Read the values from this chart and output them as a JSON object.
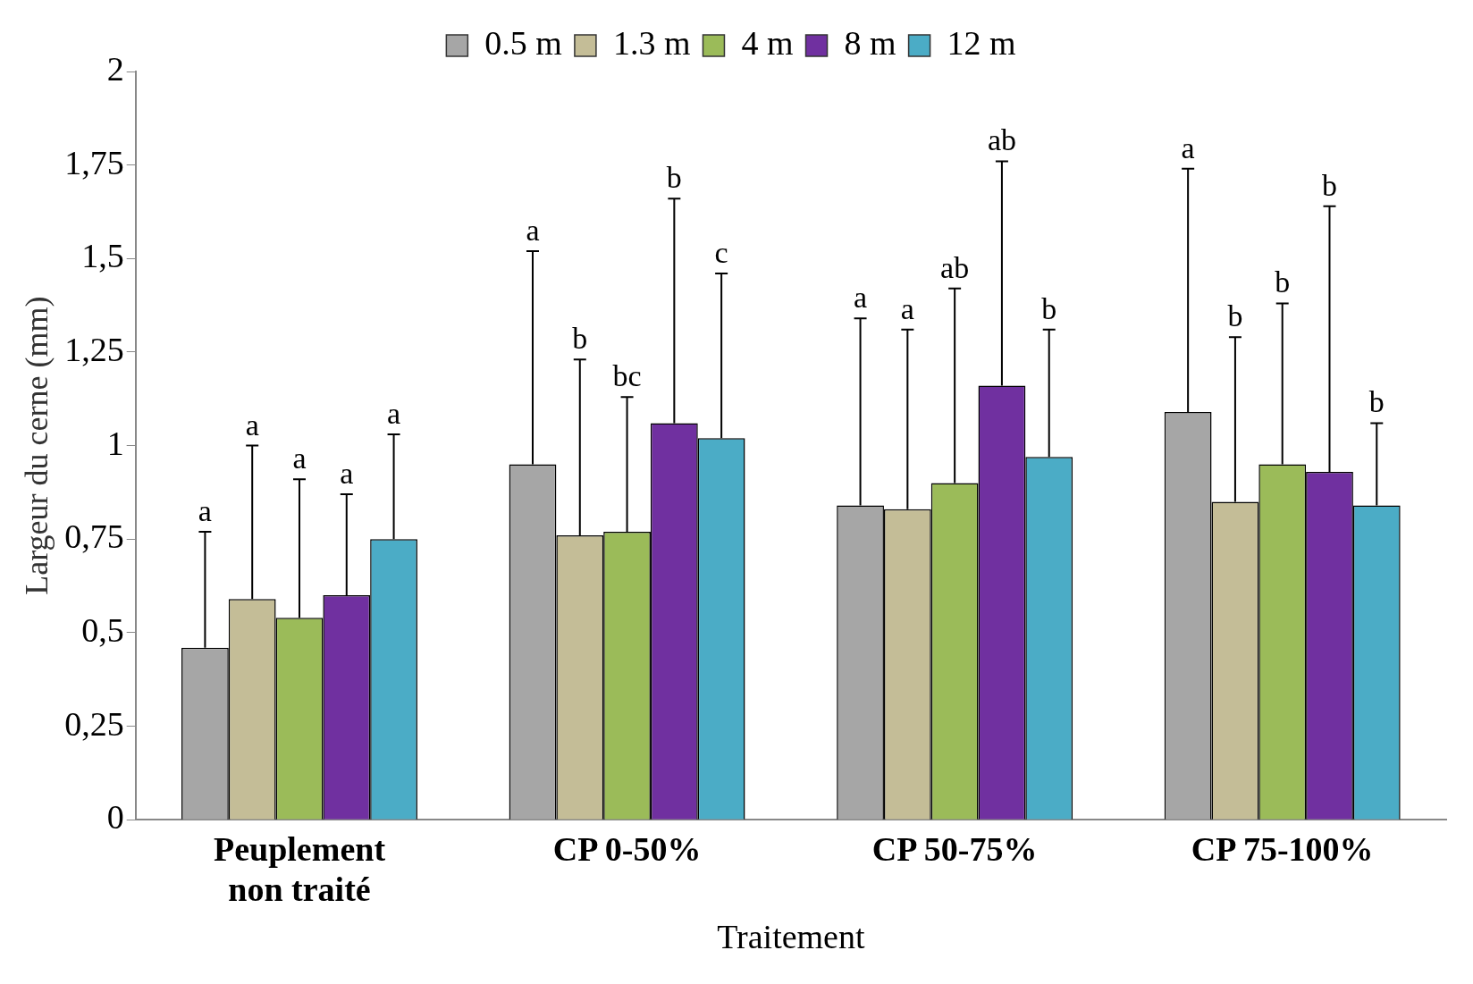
{
  "chart_data": {
    "type": "bar",
    "xlabel": "Traitement",
    "ylabel": "Largeur du cerne (mm)",
    "categories": [
      "Peuplement non traité",
      "CP 0-50%",
      "CP 50-75%",
      "CP 75-100%"
    ],
    "series": [
      {
        "name": "0.5 m",
        "color": "#a6a6a6",
        "values": [
          0.46,
          0.95,
          0.84,
          1.09
        ],
        "errors": [
          [
            0.46,
            0.77
          ],
          [
            0.95,
            1.52
          ],
          [
            0.84,
            1.34
          ],
          [
            1.09,
            1.74
          ]
        ]
      },
      {
        "name": "1.3 m",
        "color": "#c4bd97",
        "values": [
          0.59,
          0.76,
          0.83,
          0.85
        ],
        "errors": [
          [
            0.59,
            1.0
          ],
          [
            0.76,
            1.23
          ],
          [
            0.83,
            1.31
          ],
          [
            0.85,
            1.29
          ]
        ]
      },
      {
        "name": "4 m",
        "color": "#9bbb59",
        "values": [
          0.54,
          0.77,
          0.9,
          0.95
        ],
        "errors": [
          [
            0.54,
            0.91
          ],
          [
            0.77,
            1.13
          ],
          [
            0.9,
            1.42
          ],
          [
            0.95,
            1.38
          ]
        ]
      },
      {
        "name": "8 m",
        "color": "#7030a0",
        "values": [
          0.6,
          1.06,
          1.16,
          0.93
        ],
        "errors": [
          [
            0.6,
            0.87
          ],
          [
            1.06,
            1.66
          ],
          [
            1.16,
            1.76
          ],
          [
            0.93,
            1.64
          ]
        ]
      },
      {
        "name": "12 m",
        "color": "#4bacc6",
        "values": [
          0.75,
          1.02,
          0.97,
          0.84
        ],
        "errors": [
          [
            0.75,
            1.03
          ],
          [
            1.02,
            1.46
          ],
          [
            0.97,
            1.31
          ],
          [
            0.84,
            1.06
          ]
        ]
      }
    ],
    "annotations": [
      "a",
      "a",
      "a",
      "a",
      "a",
      "a",
      "b",
      "bc",
      "b",
      "c",
      "a",
      "a",
      "ab",
      "ab",
      "b",
      "a",
      "b",
      "b",
      "b",
      "b"
    ],
    "ylim": [
      0,
      2
    ],
    "yticks": [
      0,
      {
        "value": 0.25,
        "label": "0,25"
      },
      {
        "value": 0.5,
        "label": "0,5"
      },
      {
        "value": 0.75,
        "label": "0,75"
      },
      1,
      {
        "value": 1.25,
        "label": "1,25"
      },
      {
        "value": 1.5,
        "label": "1,5"
      },
      {
        "value": 1.75,
        "label": "1,75"
      },
      2
    ],
    "grid": false,
    "legend": "top"
  }
}
